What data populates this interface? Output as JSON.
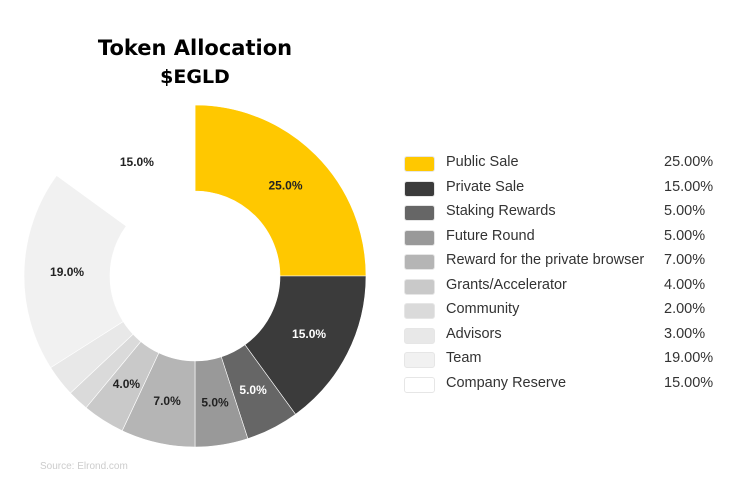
{
  "chart_data": {
    "type": "pie",
    "donut": true,
    "title": "Token Allocation",
    "subtitle": "$EGLD",
    "legend_position": "right",
    "slices": [
      {
        "label": "Public Sale",
        "value": 25,
        "legend_value": "25.00%",
        "data_label": "25.0%",
        "color": "#FFC800",
        "label_color": "#222222"
      },
      {
        "label": "Private Sale",
        "value": 15,
        "legend_value": "15.00%",
        "data_label": "15.0%",
        "color": "#3B3B3B",
        "label_color": "#ffffff"
      },
      {
        "label": "Staking Rewards",
        "value": 5,
        "legend_value": "5.00%",
        "data_label": "5.0%",
        "color": "#666666",
        "label_color": "#ffffff"
      },
      {
        "label": "Future Round",
        "value": 5,
        "legend_value": "5.00%",
        "data_label": "5.0%",
        "color": "#999999",
        "label_color": "#222222"
      },
      {
        "label": "Reward for the private browser",
        "value": 7,
        "legend_value": "7.00%",
        "data_label": "7.0%",
        "color": "#B5B5B5",
        "label_color": "#222222"
      },
      {
        "label": "Grants/Accelerator",
        "value": 4,
        "legend_value": "4.00%",
        "data_label": "4.0%",
        "color": "#C9C9C9",
        "label_color": "#222222"
      },
      {
        "label": "Community",
        "value": 2,
        "legend_value": "2.00%",
        "data_label": "",
        "color": "#DADADA",
        "label_color": "#222222"
      },
      {
        "label": "Advisors",
        "value": 3,
        "legend_value": "3.00%",
        "data_label": "",
        "color": "#E8E8E8",
        "label_color": "#222222"
      },
      {
        "label": "Team",
        "value": 19,
        "legend_value": "19.00%",
        "data_label": "19.0%",
        "color": "#F1F1F1",
        "label_color": "#222222"
      },
      {
        "label": "Company Reserve",
        "value": 15,
        "legend_value": "15.00%",
        "data_label": "15.0%",
        "color": "#FFFFFF",
        "label_color": "#222222"
      }
    ],
    "source": "Source: Elrond.com"
  }
}
